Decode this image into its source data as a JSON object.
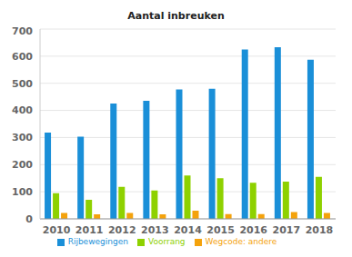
{
  "chart_data": {
    "type": "bar",
    "title": "Aantal inbreuken",
    "categories": [
      "2010",
      "2011",
      "2012",
      "2013",
      "2014",
      "2015",
      "2016",
      "2017",
      "2018"
    ],
    "series": [
      {
        "name": "Rijbewegingen",
        "color": "#1a8fd8",
        "values": [
          318,
          303,
          425,
          435,
          477,
          480,
          625,
          633,
          587
        ]
      },
      {
        "name": "Voorrang",
        "color": "#8ed100",
        "values": [
          95,
          70,
          118,
          105,
          160,
          150,
          133,
          137,
          155
        ]
      },
      {
        "name": "Wegcode: andere",
        "color": "#f4a20c",
        "values": [
          22,
          17,
          22,
          17,
          30,
          18,
          18,
          25,
          22
        ]
      }
    ],
    "ylim": [
      0,
      700
    ],
    "yticks": [
      0,
      100,
      200,
      300,
      400,
      500,
      600,
      700
    ],
    "grid": true,
    "legend": "bottom"
  }
}
